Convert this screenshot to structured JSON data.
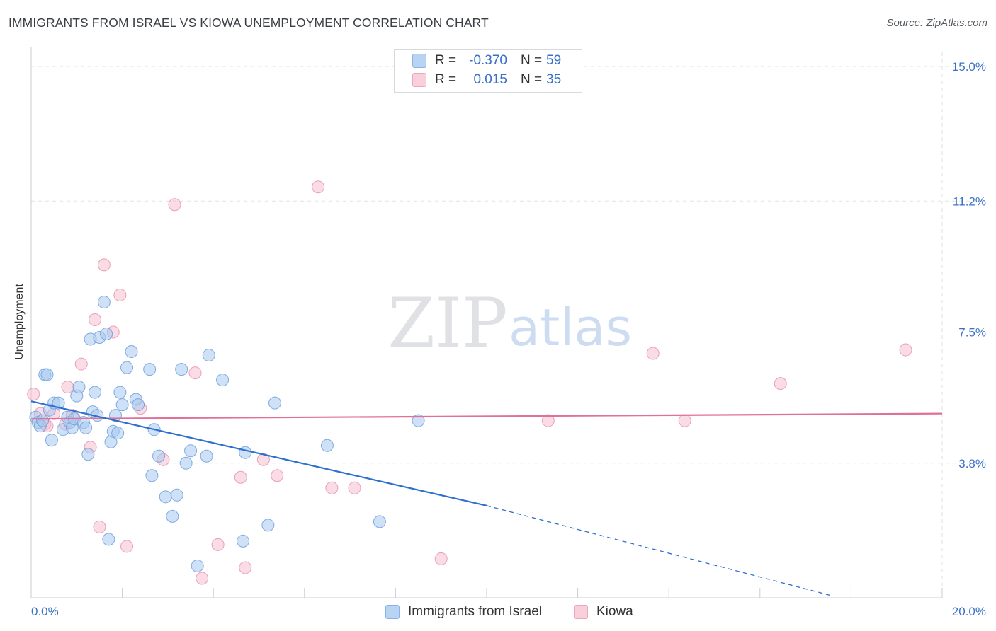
{
  "title": "IMMIGRANTS FROM ISRAEL VS KIOWA UNEMPLOYMENT CORRELATION CHART",
  "source": "Source: ZipAtlas.com",
  "watermark": {
    "zip": "ZIP",
    "atlas": "atlas"
  },
  "legend_top": {
    "rows": [
      {
        "r_label": "R =",
        "r_value": "-0.370",
        "n_label": "N =",
        "n_value": "59"
      },
      {
        "r_label": "R =",
        "r_value": "0.015",
        "n_label": "N =",
        "n_value": "35"
      }
    ]
  },
  "legend_bottom": {
    "items": [
      {
        "label": "Immigrants from Israel"
      },
      {
        "label": "Kiowa"
      }
    ]
  },
  "chart_data": {
    "type": "scatter",
    "title": "IMMIGRANTS FROM ISRAEL VS KIOWA UNEMPLOYMENT CORRELATION CHART",
    "xlabel": "",
    "ylabel": "Unemployment",
    "xlim": [
      0,
      20
    ],
    "ylim": [
      0,
      15.4
    ],
    "x_tick_labels": [
      "0.0%",
      "20.0%"
    ],
    "y_ticks": [
      3.8,
      7.5,
      11.2,
      15.0
    ],
    "y_tick_labels": [
      "3.8%",
      "7.5%",
      "11.2%",
      "15.0%"
    ],
    "grid": true,
    "colors": {
      "blue_fill": "#a8c8ef",
      "blue_edge": "#6b9fdc",
      "blue_line": "#2f6fd0",
      "pink_fill": "#f6bfd0",
      "pink_edge": "#ea8fae",
      "pink_line": "#e0709a",
      "tick_label": "#3a70c8"
    },
    "series": [
      {
        "name": "Immigrants from Israel",
        "r": -0.37,
        "n": 59,
        "trend": {
          "x_start": 0.0,
          "y_start": 5.55,
          "x_solid_end": 10.0,
          "y_solid_end": 2.6,
          "x_dash_end": 17.6,
          "y_dash_end": 0.05
        },
        "points": [
          [
            0.1,
            5.1
          ],
          [
            0.15,
            4.95
          ],
          [
            0.2,
            4.85
          ],
          [
            0.25,
            5.0
          ],
          [
            0.3,
            6.3
          ],
          [
            0.35,
            6.3
          ],
          [
            0.4,
            5.3
          ],
          [
            0.45,
            4.45
          ],
          [
            0.5,
            5.5
          ],
          [
            0.6,
            5.5
          ],
          [
            0.7,
            4.75
          ],
          [
            0.8,
            5.1
          ],
          [
            0.85,
            4.95
          ],
          [
            0.9,
            4.8
          ],
          [
            0.95,
            5.05
          ],
          [
            1.0,
            5.7
          ],
          [
            1.05,
            5.95
          ],
          [
            1.15,
            4.95
          ],
          [
            1.2,
            4.8
          ],
          [
            1.25,
            4.05
          ],
          [
            1.3,
            7.3
          ],
          [
            1.35,
            5.25
          ],
          [
            1.4,
            5.8
          ],
          [
            1.45,
            5.15
          ],
          [
            1.5,
            7.35
          ],
          [
            1.6,
            8.35
          ],
          [
            1.65,
            7.45
          ],
          [
            1.7,
            1.65
          ],
          [
            1.75,
            4.4
          ],
          [
            1.8,
            4.7
          ],
          [
            1.85,
            5.15
          ],
          [
            1.9,
            4.65
          ],
          [
            1.95,
            5.8
          ],
          [
            2.0,
            5.45
          ],
          [
            2.1,
            6.5
          ],
          [
            2.2,
            6.95
          ],
          [
            2.3,
            5.6
          ],
          [
            2.35,
            5.45
          ],
          [
            2.6,
            6.45
          ],
          [
            2.65,
            3.45
          ],
          [
            2.7,
            4.75
          ],
          [
            2.8,
            4.0
          ],
          [
            2.95,
            2.85
          ],
          [
            3.1,
            2.3
          ],
          [
            3.2,
            2.9
          ],
          [
            3.3,
            6.45
          ],
          [
            3.4,
            3.8
          ],
          [
            3.5,
            4.15
          ],
          [
            3.65,
            0.9
          ],
          [
            3.85,
            4.0
          ],
          [
            3.9,
            6.85
          ],
          [
            4.2,
            6.15
          ],
          [
            4.65,
            1.6
          ],
          [
            4.7,
            4.1
          ],
          [
            5.2,
            2.05
          ],
          [
            5.35,
            5.5
          ],
          [
            6.5,
            4.3
          ],
          [
            7.65,
            2.15
          ],
          [
            8.5,
            5.0
          ]
        ]
      },
      {
        "name": "Kiowa",
        "r": 0.015,
        "n": 35,
        "trend": {
          "x_start": 0.0,
          "y_start": 5.05,
          "x_end": 20.0,
          "y_end": 5.2
        },
        "points": [
          [
            0.05,
            5.75
          ],
          [
            0.2,
            5.2
          ],
          [
            0.3,
            4.9
          ],
          [
            0.35,
            4.85
          ],
          [
            0.5,
            5.2
          ],
          [
            0.75,
            4.9
          ],
          [
            0.8,
            5.95
          ],
          [
            0.9,
            5.15
          ],
          [
            1.1,
            6.6
          ],
          [
            1.3,
            4.25
          ],
          [
            1.4,
            7.85
          ],
          [
            1.5,
            2.0
          ],
          [
            1.6,
            9.4
          ],
          [
            1.8,
            7.5
          ],
          [
            1.95,
            8.55
          ],
          [
            2.1,
            1.45
          ],
          [
            2.4,
            5.35
          ],
          [
            2.9,
            3.9
          ],
          [
            3.15,
            11.1
          ],
          [
            3.6,
            6.35
          ],
          [
            3.75,
            0.55
          ],
          [
            4.1,
            1.5
          ],
          [
            4.6,
            3.4
          ],
          [
            4.7,
            0.85
          ],
          [
            5.1,
            3.9
          ],
          [
            5.4,
            3.45
          ],
          [
            6.3,
            11.6
          ],
          [
            6.6,
            3.1
          ],
          [
            7.1,
            3.1
          ],
          [
            9.0,
            1.1
          ],
          [
            11.35,
            5.0
          ],
          [
            13.65,
            6.9
          ],
          [
            14.35,
            5.0
          ],
          [
            16.45,
            6.05
          ],
          [
            19.2,
            7.0
          ]
        ]
      }
    ]
  }
}
